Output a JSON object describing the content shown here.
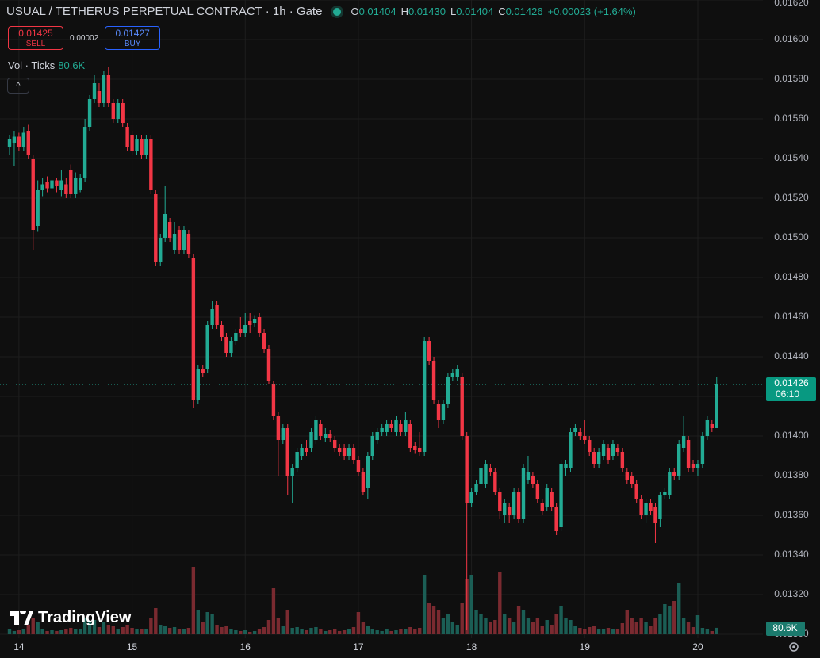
{
  "header": {
    "symbol": "USUAL / TETHERUS PERPETUAL CONTRACT · 1h · Gate",
    "ohlc": [
      {
        "key": "O",
        "value": "0.01404"
      },
      {
        "key": "H",
        "value": "0.01430"
      },
      {
        "key": "L",
        "value": "0.01404"
      },
      {
        "key": "C",
        "value": "0.01426"
      }
    ],
    "change": "+0.00023 (+1.64%)",
    "sell": {
      "price": "0.01425",
      "label": "SELL"
    },
    "spread": "0.00002",
    "buy": {
      "price": "0.01427",
      "label": "BUY"
    },
    "indicator": {
      "name": "Vol · Ticks",
      "value": "80.6K"
    },
    "logo": "TradingView"
  },
  "chart_data": {
    "type": "candlestick",
    "categories": [
      null,
      null,
      "14",
      null,
      null,
      null,
      null,
      null,
      null,
      null,
      null,
      null,
      null,
      null,
      null,
      null,
      null,
      null,
      null,
      null,
      null,
      null,
      null,
      null,
      null,
      null,
      "15",
      null,
      null,
      null,
      null,
      null,
      null,
      null,
      null,
      null,
      null,
      null,
      null,
      null,
      null,
      null,
      null,
      null,
      null,
      null,
      null,
      null,
      null,
      null,
      "16",
      null,
      null,
      null,
      null,
      null,
      null,
      null,
      null,
      null,
      null,
      null,
      null,
      null,
      null,
      null,
      null,
      null,
      null,
      null,
      null,
      null,
      null,
      null,
      "17",
      null,
      null,
      null,
      null,
      null,
      null,
      null,
      null,
      null,
      null,
      null,
      null,
      null,
      null,
      null,
      null,
      null,
      null,
      null,
      null,
      null,
      null,
      null,
      "18",
      null,
      null,
      null,
      null,
      null,
      null,
      null,
      null,
      null,
      null,
      null,
      null,
      null,
      null,
      null,
      null,
      null,
      null,
      null,
      null,
      null,
      null,
      null,
      "19",
      null,
      null,
      null,
      null,
      null,
      null,
      null,
      null,
      null,
      null,
      null,
      null,
      null,
      null,
      null,
      null,
      null,
      null,
      null,
      null,
      null,
      null,
      null,
      "20",
      null,
      null,
      null,
      null
    ],
    "open": [
      0.01546,
      0.01548,
      0.01551,
      0.01546,
      0.01554,
      0.0154,
      0.01506,
      0.01524,
      0.01528,
      0.01525,
      0.01529,
      0.01524,
      0.01527,
      0.01534,
      0.01522,
      0.01524,
      0.0153,
      0.01556,
      0.0157,
      0.01574,
      0.01568,
      0.01582,
      0.01568,
      0.0156,
      0.01568,
      0.01556,
      0.01552,
      0.01544,
      0.0155,
      0.01542,
      0.0155,
      0.01522,
      0.01488,
      0.015,
      0.01508,
      0.01494,
      0.01504,
      0.01494,
      0.01502,
      0.0149,
      0.01418,
      0.01434,
      0.01434,
      0.01456,
      0.01466,
      0.01456,
      0.0145,
      0.01442,
      0.01448,
      0.01454,
      0.01452,
      0.01458,
      0.01457,
      0.0146,
      0.01452,
      0.01444,
      0.01426,
      0.0141,
      0.01398,
      0.01404,
      0.0138,
      0.01384,
      0.0139,
      0.01394,
      0.01394,
      0.01398,
      0.01406,
      0.01399,
      0.01401,
      0.01398,
      0.01394,
      0.01394,
      0.0139,
      0.01394,
      0.01388,
      0.01382,
      0.01374,
      0.0139,
      0.01398,
      0.01402,
      0.01402,
      0.01406,
      0.01402,
      0.01406,
      0.01402,
      0.01406,
      0.01395,
      0.01394,
      0.01392,
      0.01448,
      0.01438,
      0.01416,
      0.01408,
      0.01416,
      0.0143,
      0.0143,
      0.0143,
      0.014,
      0.01366,
      0.01372,
      0.01376,
      0.01376,
      0.01384,
      0.01382,
      0.01372,
      0.0136,
      0.01364,
      0.0136,
      0.01372,
      0.01358,
      0.01378,
      0.0138,
      0.01376,
      0.01366,
      0.01364,
      0.01372,
      0.01364,
      0.01354,
      0.01384,
      0.01384,
      0.01402,
      0.01402,
      0.014,
      0.01398,
      0.01392,
      0.01386,
      0.0139,
      0.01394,
      0.0139,
      0.01394,
      0.01392,
      0.01382,
      0.0138,
      0.01376,
      0.01368,
      0.0136,
      0.01366,
      0.01364,
      0.01358,
      0.0137,
      0.0137,
      0.01382,
      0.0138,
      0.01394,
      0.01398,
      0.01386,
      0.01384,
      0.01386,
      0.014,
      0.01406,
      0.01404
    ],
    "high": [
      0.01552,
      0.01554,
      0.01553,
      0.01556,
      0.01557,
      0.01542,
      0.01529,
      0.0153,
      0.01531,
      0.01531,
      0.0153,
      0.01534,
      0.0153,
      0.01537,
      0.01533,
      0.01532,
      0.0156,
      0.01572,
      0.01582,
      0.01578,
      0.01584,
      0.01586,
      0.0157,
      0.0157,
      0.0157,
      0.01558,
      0.01554,
      0.01552,
      0.01552,
      0.01552,
      0.01552,
      0.01524,
      0.01502,
      0.01526,
      0.0151,
      0.01508,
      0.01506,
      0.01506,
      0.01504,
      0.01492,
      0.01436,
      0.01436,
      0.01458,
      0.01468,
      0.01468,
      0.01458,
      0.01452,
      0.0145,
      0.01454,
      0.0146,
      0.01462,
      0.01462,
      0.01461,
      0.01462,
      0.01454,
      0.01446,
      0.01428,
      0.01412,
      0.01406,
      0.01406,
      0.01386,
      0.01394,
      0.01396,
      0.01398,
      0.01404,
      0.0141,
      0.01408,
      0.01404,
      0.01403,
      0.014,
      0.01396,
      0.01396,
      0.01396,
      0.01396,
      0.0139,
      0.01384,
      0.01392,
      0.01402,
      0.01404,
      0.01406,
      0.01408,
      0.01408,
      0.0141,
      0.01408,
      0.01412,
      0.01408,
      0.01397,
      0.01402,
      0.0145,
      0.0145,
      0.0144,
      0.01418,
      0.01418,
      0.01432,
      0.01434,
      0.01436,
      0.01432,
      0.01402,
      0.01374,
      0.01378,
      0.01386,
      0.01388,
      0.01386,
      0.01384,
      0.01374,
      0.01368,
      0.01366,
      0.01374,
      0.01374,
      0.01386,
      0.0139,
      0.01382,
      0.01378,
      0.01368,
      0.01376,
      0.01374,
      0.01366,
      0.01388,
      0.01388,
      0.01404,
      0.01406,
      0.01404,
      0.01408,
      0.014,
      0.01394,
      0.01394,
      0.01398,
      0.01396,
      0.01398,
      0.01396,
      0.01394,
      0.01384,
      0.01382,
      0.01378,
      0.0137,
      0.01368,
      0.01368,
      0.01366,
      0.01372,
      0.01374,
      0.01384,
      0.01384,
      0.01398,
      0.0141,
      0.014,
      0.01388,
      0.01388,
      0.01402,
      0.0141,
      0.01408,
      0.0143
    ],
    "low": [
      0.01542,
      0.01536,
      0.01544,
      0.01544,
      0.0154,
      0.01494,
      0.01503,
      0.01521,
      0.01523,
      0.01522,
      0.01523,
      0.01521,
      0.0152,
      0.0152,
      0.0152,
      0.01523,
      0.01528,
      0.01554,
      0.01568,
      0.01566,
      0.01566,
      0.01566,
      0.01558,
      0.01558,
      0.01556,
      0.01544,
      0.01542,
      0.01542,
      0.0154,
      0.0154,
      0.01522,
      0.01486,
      0.01486,
      0.01498,
      0.01498,
      0.01492,
      0.01492,
      0.01492,
      0.0149,
      0.01414,
      0.01416,
      0.0143,
      0.01432,
      0.01454,
      0.01454,
      0.01448,
      0.0144,
      0.0144,
      0.01446,
      0.0145,
      0.0145,
      0.01452,
      0.01455,
      0.0145,
      0.01442,
      0.01426,
      0.01408,
      0.0138,
      0.01396,
      0.0137,
      0.01366,
      0.01382,
      0.01388,
      0.0139,
      0.01392,
      0.01396,
      0.01398,
      0.01397,
      0.01397,
      0.01392,
      0.0139,
      0.01388,
      0.01388,
      0.01386,
      0.0138,
      0.0137,
      0.01368,
      0.01388,
      0.01396,
      0.014,
      0.014,
      0.01402,
      0.014,
      0.014,
      0.014,
      0.01392,
      0.01391,
      0.0139,
      0.0139,
      0.01436,
      0.01416,
      0.01404,
      0.01406,
      0.01414,
      0.01428,
      0.01428,
      0.01398,
      0.01302,
      0.01364,
      0.0137,
      0.01374,
      0.01374,
      0.0138,
      0.0137,
      0.01358,
      0.01356,
      0.01356,
      0.01358,
      0.01356,
      0.01356,
      0.01376,
      0.01374,
      0.01366,
      0.0136,
      0.01362,
      0.01362,
      0.0135,
      0.01352,
      0.0138,
      0.01382,
      0.014,
      0.01398,
      0.01396,
      0.0139,
      0.01384,
      0.01384,
      0.01388,
      0.01386,
      0.01388,
      0.0139,
      0.01382,
      0.01376,
      0.01374,
      0.01366,
      0.01358,
      0.01356,
      0.0136,
      0.01346,
      0.01354,
      0.01368,
      0.01368,
      0.01378,
      0.01378,
      0.01392,
      0.01382,
      0.01382,
      0.0138,
      0.01384,
      0.01398,
      0.01402,
      0.01404
    ],
    "close": [
      0.0155,
      0.01551,
      0.01546,
      0.01553,
      0.01542,
      0.01504,
      0.01524,
      0.01527,
      0.01525,
      0.01529,
      0.01526,
      0.01529,
      0.01522,
      0.01522,
      0.0153,
      0.0153,
      0.01556,
      0.0157,
      0.01578,
      0.01568,
      0.01582,
      0.01568,
      0.0156,
      0.01568,
      0.01558,
      0.01546,
      0.01544,
      0.0155,
      0.01542,
      0.0155,
      0.01524,
      0.01488,
      0.015,
      0.01512,
      0.015,
      0.01502,
      0.01494,
      0.01504,
      0.01492,
      0.01418,
      0.01434,
      0.01432,
      0.01456,
      0.01464,
      0.01456,
      0.0145,
      0.01442,
      0.01448,
      0.01452,
      0.01452,
      0.01456,
      0.01456,
      0.01459,
      0.01452,
      0.01444,
      0.01428,
      0.0141,
      0.01398,
      0.01404,
      0.0138,
      0.01384,
      0.01392,
      0.01394,
      0.01392,
      0.01402,
      0.01408,
      0.014,
      0.01401,
      0.01399,
      0.01394,
      0.01392,
      0.0139,
      0.01394,
      0.01388,
      0.01382,
      0.01372,
      0.0139,
      0.014,
      0.01402,
      0.01404,
      0.01406,
      0.01404,
      0.01408,
      0.01402,
      0.01408,
      0.01394,
      0.01393,
      0.01392,
      0.01448,
      0.01438,
      0.01418,
      0.01408,
      0.01416,
      0.0143,
      0.01432,
      0.01434,
      0.014,
      0.01366,
      0.01372,
      0.01376,
      0.01384,
      0.01386,
      0.01382,
      0.01372,
      0.01362,
      0.01366,
      0.0136,
      0.01372,
      0.01358,
      0.01384,
      0.01382,
      0.01376,
      0.01368,
      0.01362,
      0.01374,
      0.01364,
      0.01352,
      0.01386,
      0.01386,
      0.01402,
      0.01404,
      0.014,
      0.01398,
      0.01392,
      0.01386,
      0.01392,
      0.01396,
      0.01388,
      0.01396,
      0.01392,
      0.01384,
      0.01378,
      0.01376,
      0.01368,
      0.0136,
      0.01366,
      0.01362,
      0.01356,
      0.0137,
      0.01372,
      0.01382,
      0.0138,
      0.01396,
      0.014,
      0.01384,
      0.01384,
      0.01386,
      0.014,
      0.01408,
      0.01404,
      0.01426
    ],
    "volume": [
      60000,
      40000,
      50000,
      70000,
      120000,
      200000,
      150000,
      60000,
      40000,
      50000,
      40000,
      50000,
      60000,
      80000,
      70000,
      60000,
      200000,
      150000,
      180000,
      90000,
      160000,
      120000,
      100000,
      70000,
      90000,
      110000,
      80000,
      60000,
      70000,
      60000,
      200000,
      330000,
      120000,
      100000,
      80000,
      90000,
      60000,
      70000,
      80000,
      850000,
      300000,
      150000,
      280000,
      250000,
      120000,
      90000,
      100000,
      60000,
      50000,
      40000,
      50000,
      30000,
      40000,
      70000,
      90000,
      180000,
      580000,
      200000,
      100000,
      300000,
      80000,
      90000,
      60000,
      50000,
      80000,
      90000,
      60000,
      40000,
      50000,
      60000,
      40000,
      50000,
      70000,
      90000,
      280000,
      150000,
      100000,
      60000,
      50000,
      40000,
      60000,
      40000,
      50000,
      60000,
      70000,
      90000,
      60000,
      80000,
      750000,
      400000,
      350000,
      300000,
      200000,
      250000,
      150000,
      120000,
      400000,
      700000,
      750000,
      300000,
      250000,
      200000,
      150000,
      180000,
      780000,
      250000,
      200000,
      150000,
      350000,
      300000,
      200000,
      150000,
      200000,
      100000,
      180000,
      120000,
      250000,
      350000,
      200000,
      180000,
      100000,
      80000,
      70000,
      90000,
      100000,
      70000,
      60000,
      80000,
      60000,
      70000,
      140000,
      300000,
      200000,
      150000,
      200000,
      150000,
      100000,
      200000,
      250000,
      380000,
      350000,
      420000,
      650000,
      200000,
      160000,
      90000,
      240000,
      80000,
      60000,
      40000,
      80600
    ],
    "up_color": "#22ab94",
    "down_color": "#f23645",
    "volume_up_color": "#1b5e55",
    "volume_down_color": "#7a2a30",
    "ylim": [
      0.01298,
      0.0162
    ],
    "yticks": [
      {
        "value": 0.013,
        "label": "0.01300"
      },
      {
        "value": 0.0132,
        "label": "0.01320"
      },
      {
        "value": 0.0134,
        "label": "0.01340"
      },
      {
        "value": 0.0136,
        "label": "0.01360"
      },
      {
        "value": 0.0138,
        "label": "0.01380"
      },
      {
        "value": 0.014,
        "label": "0.01400"
      },
      {
        "value": 0.0142,
        "label": "0.01420"
      },
      {
        "value": 0.0144,
        "label": "0.01440"
      },
      {
        "value": 0.0146,
        "label": "0.01460"
      },
      {
        "value": 0.0148,
        "label": "0.01480"
      },
      {
        "value": 0.015,
        "label": "0.01500"
      },
      {
        "value": 0.0152,
        "label": "0.01520"
      },
      {
        "value": 0.0154,
        "label": "0.01540"
      },
      {
        "value": 0.0156,
        "label": "0.01560"
      },
      {
        "value": 0.0158,
        "label": "0.01580"
      },
      {
        "value": 0.016,
        "label": "0.01600"
      },
      {
        "value": 0.0162,
        "label": "0.01620"
      }
    ],
    "grid": true,
    "last_price_label": "0.01426",
    "countdown": "06:10",
    "last_volume_label": "80.6K"
  }
}
